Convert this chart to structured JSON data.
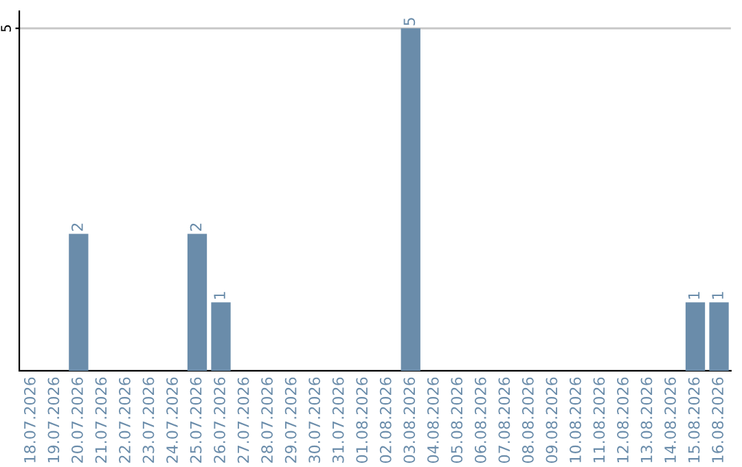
{
  "chart_data": {
    "type": "bar",
    "categories": [
      "18.07.2026",
      "19.07.2026",
      "20.07.2026",
      "21.07.2026",
      "22.07.2026",
      "23.07.2026",
      "24.07.2026",
      "25.07.2026",
      "26.07.2026",
      "27.07.2026",
      "28.07.2026",
      "29.07.2026",
      "30.07.2026",
      "31.07.2026",
      "01.08.2026",
      "02.08.2026",
      "03.08.2026",
      "04.08.2026",
      "05.08.2026",
      "06.08.2026",
      "07.08.2026",
      "08.08.2026",
      "09.08.2026",
      "10.08.2026",
      "11.08.2026",
      "12.08.2026",
      "13.08.2026",
      "14.08.2026",
      "15.08.2026",
      "16.08.2026"
    ],
    "values": [
      0,
      0,
      2,
      0,
      0,
      0,
      0,
      2,
      1,
      0,
      0,
      0,
      0,
      0,
      0,
      0,
      5,
      0,
      0,
      0,
      0,
      0,
      0,
      0,
      0,
      0,
      0,
      0,
      1,
      1
    ],
    "value_labels": [
      null,
      null,
      "2",
      null,
      null,
      null,
      null,
      "2",
      "1",
      null,
      null,
      null,
      null,
      null,
      null,
      null,
      "5",
      null,
      null,
      null,
      null,
      null,
      null,
      null,
      null,
      null,
      null,
      null,
      "1",
      "1"
    ],
    "color": "#6a8caa",
    "ylim": [
      0,
      5.25
    ],
    "yticks": [
      5
    ],
    "grid": "y"
  }
}
